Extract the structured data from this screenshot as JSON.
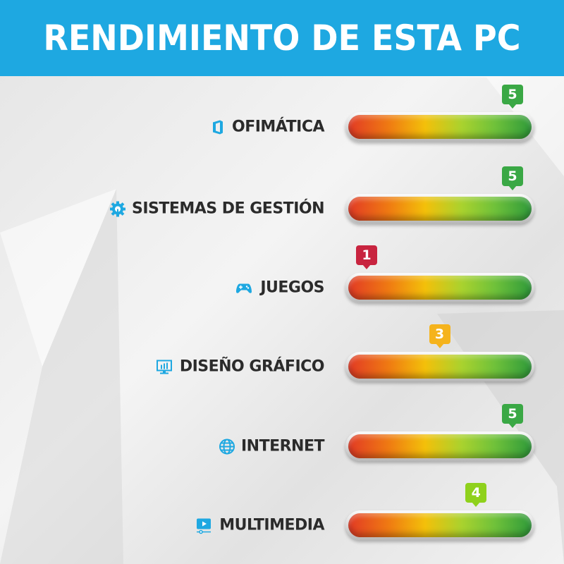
{
  "header": {
    "title": "RENDIMIENTO DE ESTA PC"
  },
  "scale": {
    "min": 1,
    "max": 5
  },
  "rows": [
    {
      "label": "OFIMÁTICA",
      "icon": "office-icon",
      "score": "5",
      "color": "#3aa845"
    },
    {
      "label": "SISTEMAS DE GESTIÓN",
      "icon": "gear-wrench-icon",
      "score": "5",
      "color": "#3aa845"
    },
    {
      "label": "JUEGOS",
      "icon": "gamepad-icon",
      "score": "1",
      "color": "#c8243f"
    },
    {
      "label": "DISEÑO GRÁFICO",
      "icon": "monitor-chart-icon",
      "score": "3",
      "color": "#f5b31c"
    },
    {
      "label": "INTERNET",
      "icon": "globe-icon",
      "score": "5",
      "color": "#3aa845"
    },
    {
      "label": "MULTIMEDIA",
      "icon": "video-player-icon",
      "score": "4",
      "color": "#8fd11c"
    }
  ],
  "colors": {
    "accent": "#1ea8e1",
    "text": "#2b2b2b"
  }
}
